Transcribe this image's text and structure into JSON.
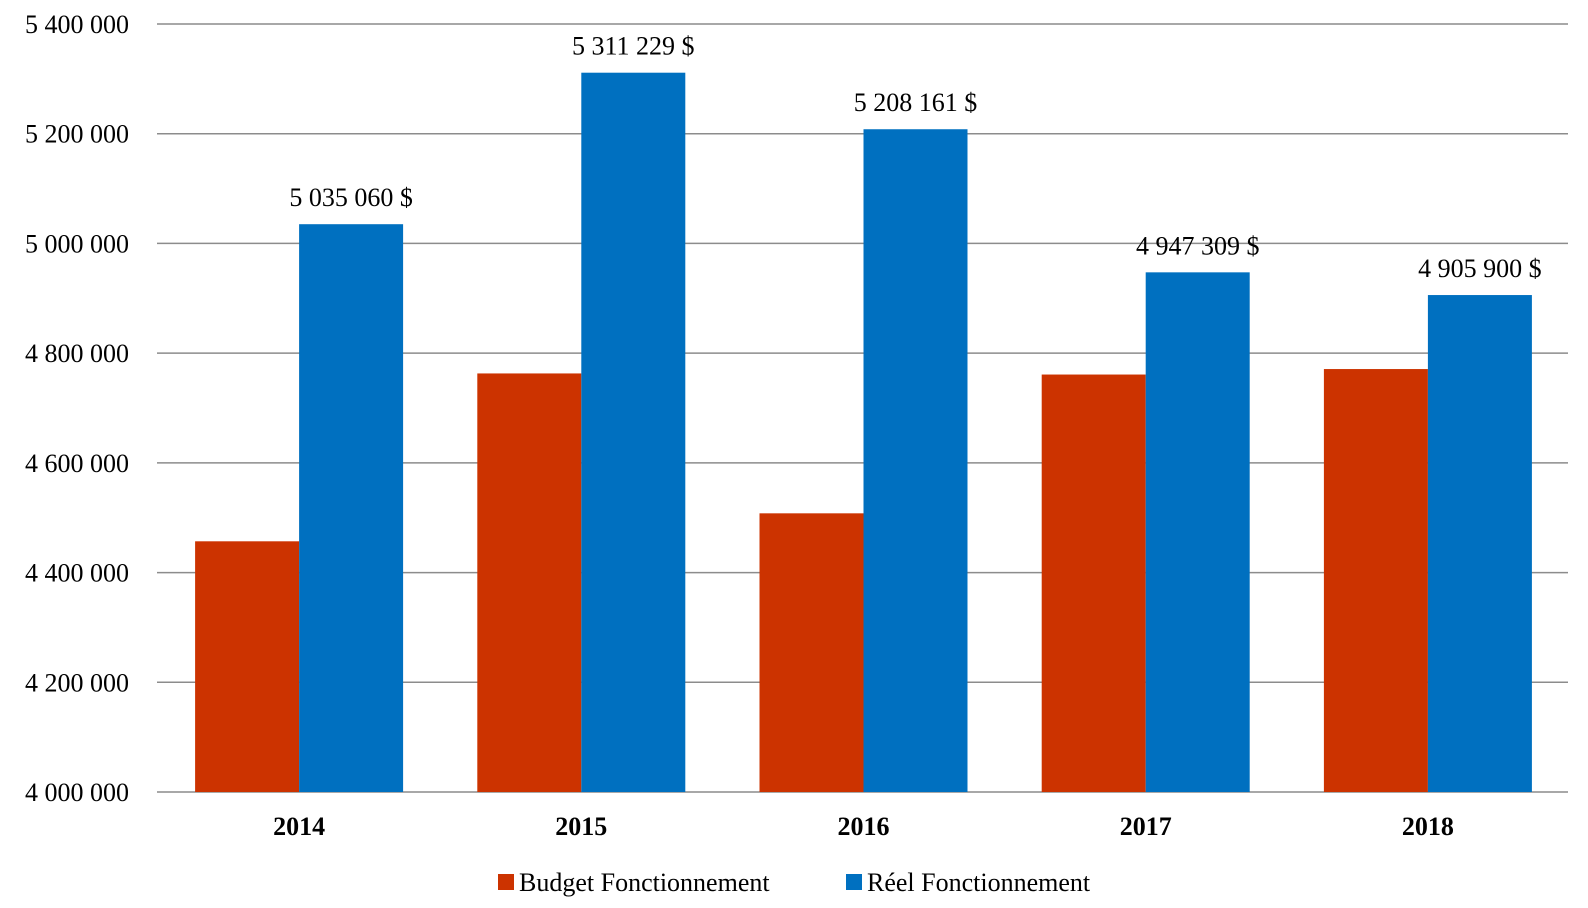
{
  "chart_data": {
    "type": "bar",
    "categories": [
      "2014",
      "2015",
      "2016",
      "2017",
      "2018"
    ],
    "series": [
      {
        "name": "Budget Fonctionnement",
        "color": "#cc3300",
        "values": [
          4457000,
          4763000,
          4508000,
          4761000,
          4771000
        ],
        "labels": [
          "",
          "",
          "",
          "",
          ""
        ]
      },
      {
        "name": "Réel Fonctionnement",
        "color": "#0070c0",
        "values": [
          5035060,
          5311229,
          5208161,
          4947309,
          4905900
        ],
        "labels": [
          "5 035 060  $",
          "5 311 229  $",
          "5 208 161  $",
          "4 947 309  $",
          "4 905 900  $"
        ]
      }
    ],
    "ylim": [
      4000000,
      5400000
    ],
    "yticks": [
      4000000,
      4200000,
      4400000,
      4600000,
      4800000,
      5000000,
      5200000,
      5400000
    ],
    "ytick_labels": [
      "4 000 000",
      "4 200 000",
      "4 400 000",
      "4 600 000",
      "4 800 000",
      "5 000 000",
      "5 200 000",
      "5 400 000"
    ],
    "title": "",
    "xlabel": "",
    "ylabel": "",
    "grid": true,
    "legend_position": "bottom"
  }
}
